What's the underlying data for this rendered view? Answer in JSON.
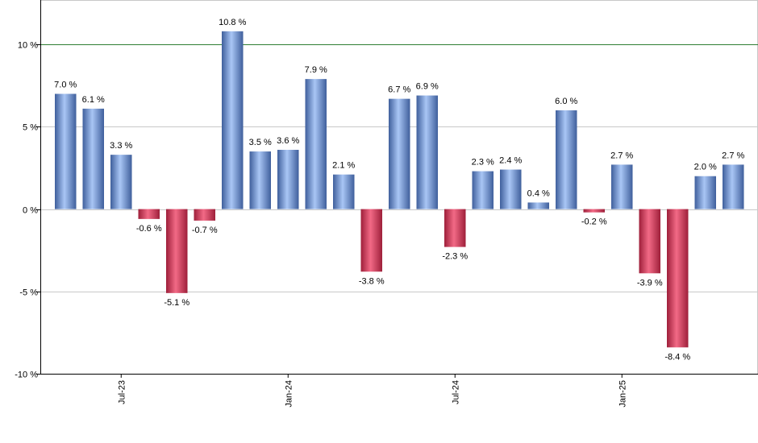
{
  "chart_data": {
    "type": "bar",
    "title": "",
    "xlabel": "",
    "ylabel": "",
    "ylim": [
      -10,
      12.7
    ],
    "grid": true,
    "value_suffix": " %",
    "y_ticks": [
      {
        "value": 10,
        "label": "10 %"
      },
      {
        "value": 5,
        "label": "5 %"
      },
      {
        "value": 0,
        "label": "0 %"
      },
      {
        "value": -5,
        "label": "-5 %"
      },
      {
        "value": -10,
        "label": "-10 %"
      }
    ],
    "reference_line": {
      "value": 10,
      "color": "#2e7d32"
    },
    "x_ticks": [
      {
        "index": 2,
        "label": "Jul-23"
      },
      {
        "index": 8,
        "label": "Jan-24"
      },
      {
        "index": 14,
        "label": "Jul-24"
      },
      {
        "index": 20,
        "label": "Jan-25"
      }
    ],
    "values": [
      7.0,
      6.1,
      3.3,
      -0.6,
      -5.1,
      -0.7,
      10.8,
      3.5,
      3.6,
      7.9,
      2.1,
      -3.8,
      6.7,
      6.9,
      -2.3,
      2.3,
      2.4,
      0.4,
      6.0,
      -0.2,
      2.7,
      -3.9,
      -8.4,
      2.0,
      2.7
    ],
    "value_labels": [
      "7.0 %",
      "6.1 %",
      "3.3 %",
      "-0.6 %",
      "-5.1 %",
      "-0.7 %",
      "10.8 %",
      "3.5 %",
      "3.6 %",
      "7.9 %",
      "2.1 %",
      "-3.8 %",
      "6.7 %",
      "6.9 %",
      "-2.3 %",
      "2.3 %",
      "2.4 %",
      "0.4 %",
      "6.0 %",
      "-0.2 %",
      "2.7 %",
      "-3.9 %",
      "-8.4 %",
      "2.0 %",
      "2.7 %"
    ],
    "colors": {
      "positive_dark": "#3f5f9c",
      "positive_light": "#a9c6f5",
      "negative_dark": "#9e1f3a",
      "negative_light": "#f26a86",
      "gridline": "#c8c8c8",
      "axis": "#7f7f7f"
    }
  }
}
